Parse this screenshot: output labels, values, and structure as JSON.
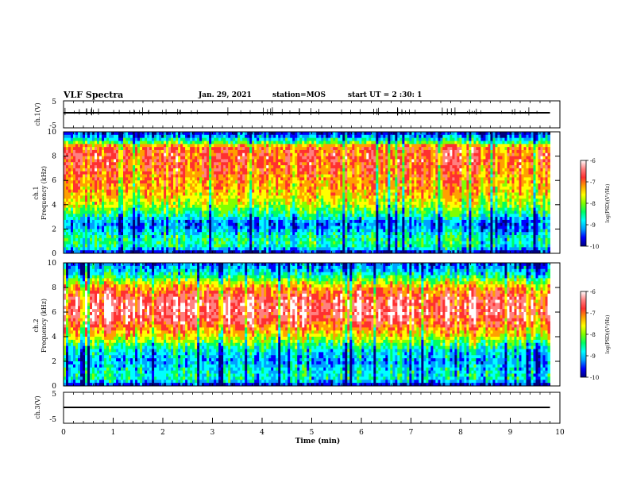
{
  "header": {
    "title": "VLF Spectra",
    "date": "Jan. 29, 2021",
    "station": "station=MOS",
    "start": "start  UT =  2 :30: 1"
  },
  "chart_data": [
    {
      "type": "line",
      "id": "ch1",
      "ylabel": "ch.1(V)",
      "ylim": [
        -5,
        5
      ],
      "yticks": [
        "5",
        "-5"
      ],
      "series": [
        {
          "x": [
            0,
            9.8
          ],
          "y": [
            0,
            0
          ]
        }
      ]
    },
    {
      "type": "heatmap",
      "id": "spec1",
      "ylabel_line1": "ch.1",
      "ylabel_line2": "Frequency (kHz)",
      "ylim": [
        0,
        10
      ],
      "yticks": [
        "0",
        "2",
        "4",
        "6",
        "8",
        "10"
      ],
      "colorbar": {
        "label": "log(PSD)(V²/Hz)",
        "ticks": [
          "-6",
          "-7",
          "-8",
          "-9",
          "-10"
        ],
        "range": [
          -10,
          -6
        ]
      },
      "profile": [
        {
          "f": 0.0,
          "v": -9.8
        },
        {
          "f": 0.5,
          "v": -8.6
        },
        {
          "f": 1.0,
          "v": -8.4
        },
        {
          "f": 1.5,
          "v": -8.6
        },
        {
          "f": 2.0,
          "v": -9.0
        },
        {
          "f": 2.5,
          "v": -9.2
        },
        {
          "f": 3.0,
          "v": -8.6
        },
        {
          "f": 4.0,
          "v": -7.8
        },
        {
          "f": 5.0,
          "v": -7.4
        },
        {
          "f": 6.0,
          "v": -7.2
        },
        {
          "f": 7.0,
          "v": -7.0
        },
        {
          "f": 8.0,
          "v": -6.9
        },
        {
          "f": 8.8,
          "v": -7.1
        },
        {
          "f": 9.2,
          "v": -8.4
        },
        {
          "f": 10.0,
          "v": -9.6
        }
      ]
    },
    {
      "type": "heatmap",
      "id": "spec2",
      "ylabel_line1": "ch.2",
      "ylabel_line2": "Frequency (kHz)",
      "ylim": [
        0,
        10
      ],
      "yticks": [
        "0",
        "2",
        "4",
        "6",
        "8",
        "10"
      ],
      "colorbar": {
        "label": "log(PSD)(V²/Hz)",
        "ticks": [
          "-6",
          "-7",
          "-8",
          "-9",
          "-10"
        ],
        "range": [
          -10,
          -6
        ]
      },
      "profile": [
        {
          "f": 0.0,
          "v": -9.8
        },
        {
          "f": 0.5,
          "v": -8.6
        },
        {
          "f": 1.0,
          "v": -8.6
        },
        {
          "f": 1.5,
          "v": -8.8
        },
        {
          "f": 2.0,
          "v": -9.0
        },
        {
          "f": 3.0,
          "v": -8.6
        },
        {
          "f": 4.0,
          "v": -7.6
        },
        {
          "f": 5.0,
          "v": -6.9
        },
        {
          "f": 6.0,
          "v": -6.5
        },
        {
          "f": 7.0,
          "v": -6.6
        },
        {
          "f": 8.0,
          "v": -7.2
        },
        {
          "f": 8.6,
          "v": -8.0
        },
        {
          "f": 9.2,
          "v": -8.7
        },
        {
          "f": 10.0,
          "v": -9.3
        }
      ]
    },
    {
      "type": "line",
      "id": "ch3",
      "ylabel": "ch.3(V)",
      "ylim": [
        -5,
        5
      ],
      "yticks": [
        "5",
        "-5"
      ],
      "series": [
        {
          "x": [
            0,
            9.8
          ],
          "y": [
            0,
            0
          ]
        }
      ]
    }
  ],
  "xaxis": {
    "label": "Time (min)",
    "xlim": [
      0,
      10
    ],
    "ticks": [
      "0",
      "1",
      "2",
      "3",
      "4",
      "5",
      "6",
      "7",
      "8",
      "9",
      "10"
    ],
    "data_end": 9.8
  },
  "colors": {
    "scale": [
      "#000080",
      "#0000ff",
      "#00a0ff",
      "#00ffff",
      "#00ff60",
      "#80ff00",
      "#ffff00",
      "#ffa000",
      "#ff3030",
      "#ff8080",
      "#ffffff"
    ]
  }
}
